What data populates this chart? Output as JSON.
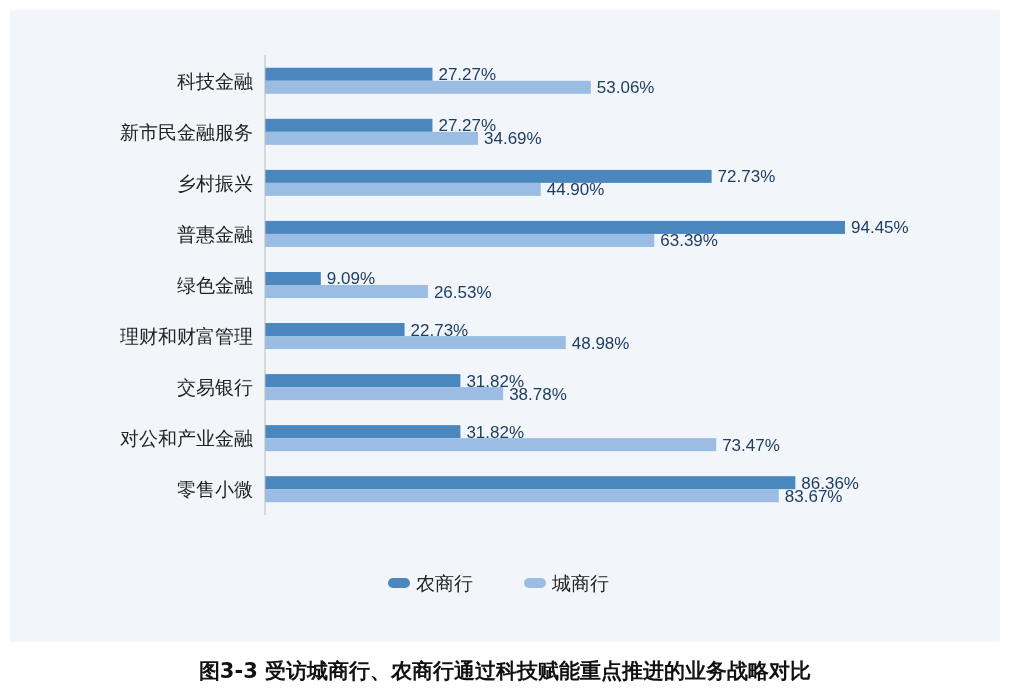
{
  "chart_data": {
    "type": "bar",
    "orientation": "horizontal",
    "title": "图3-3 受访城商行、农商行通过科技赋能重点推进的业务战略对比",
    "categories": [
      "科技金融",
      "新市民金融服务",
      "乡村振兴",
      "普惠金融",
      "绿色金融",
      "理财和财富管理",
      "交易银行",
      "对公和产业金融",
      "零售小微"
    ],
    "series": [
      {
        "name": "农商行",
        "color": "#4a87be",
        "values": [
          27.27,
          27.27,
          72.73,
          94.45,
          9.09,
          22.73,
          31.82,
          31.82,
          86.36
        ],
        "value_labels": [
          "27.27%",
          "27.27%",
          "72.73%",
          "94.45%",
          "9.09%",
          "22.73%",
          "31.82%",
          "31.82%",
          "86.36%"
        ]
      },
      {
        "name": "城商行",
        "color": "#9bbde3",
        "values": [
          53.06,
          34.69,
          44.9,
          63.39,
          26.53,
          48.98,
          38.78,
          73.47,
          83.67
        ],
        "value_labels": [
          "53.06%",
          "34.69%",
          "44.90%",
          "63.39%",
          "26.53%",
          "48.98%",
          "38.78%",
          "73.47%",
          "83.67%"
        ]
      }
    ],
    "legend": "bottom",
    "tick_labels": "y"
  }
}
